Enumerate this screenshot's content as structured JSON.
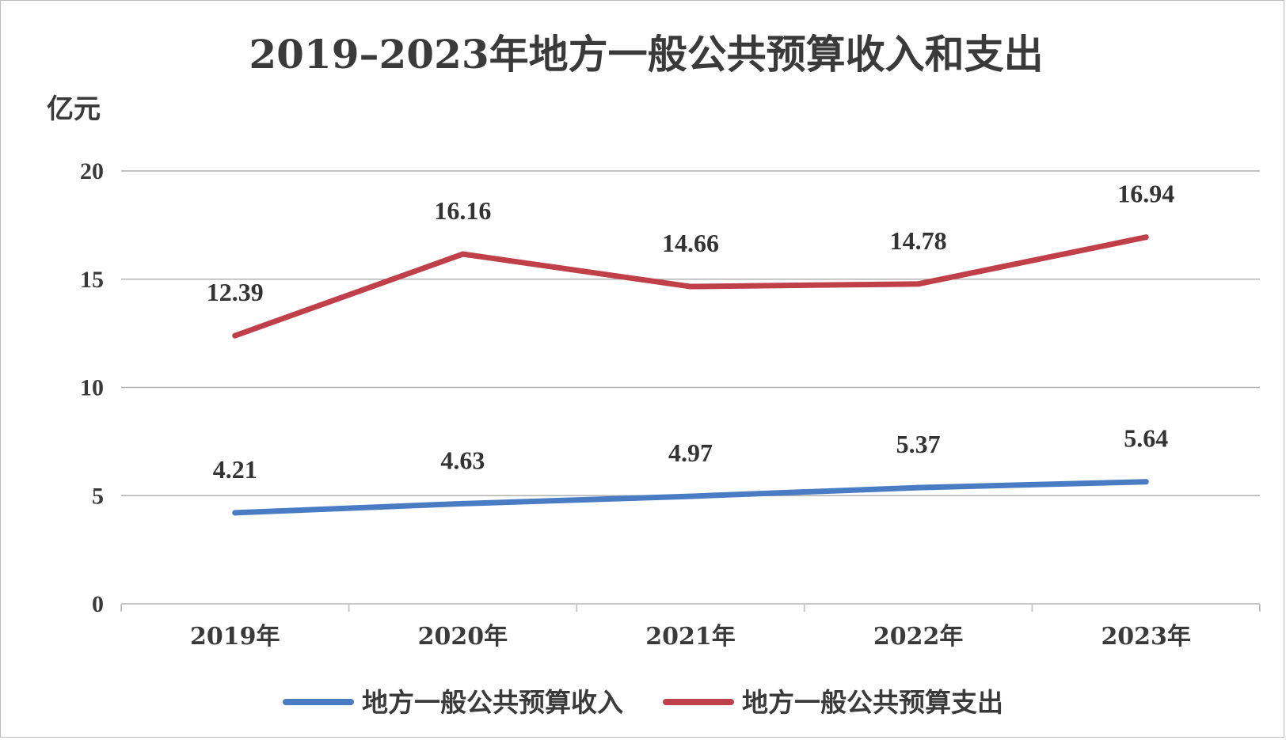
{
  "chart_data": {
    "type": "line",
    "title": "2019–2023年地方一般公共预算收入和支出",
    "ylabel": "亿元",
    "xlabel": "",
    "categories": [
      "2019年",
      "2020年",
      "2021年",
      "2022年",
      "2023年"
    ],
    "y_ticks": [
      "0",
      "5",
      "10",
      "15",
      "20"
    ],
    "ylim": [
      0,
      20
    ],
    "grid": true,
    "legend_position": "bottom",
    "series": [
      {
        "name": "地方一般公共预算收入",
        "color": "#4a7cc4",
        "values": [
          4.21,
          4.63,
          4.97,
          5.37,
          5.64
        ],
        "labels": [
          "4.21",
          "4.63",
          "4.97",
          "5.37",
          "5.64"
        ]
      },
      {
        "name": "地方一般公共预算支出",
        "color": "#c0404a",
        "values": [
          12.39,
          16.16,
          14.66,
          14.78,
          16.94
        ],
        "labels": [
          "12.39",
          "16.16",
          "14.66",
          "14.78",
          "16.94"
        ]
      }
    ]
  }
}
